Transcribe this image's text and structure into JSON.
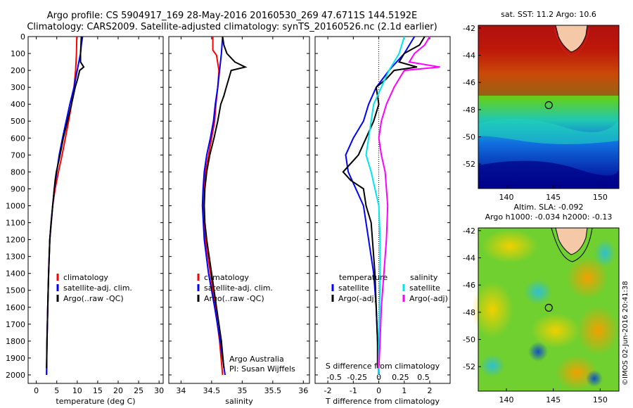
{
  "header": {
    "line1": "Argo profile: CS 5904917_169 28-May-2016 20160530_269 47.6711S 144.5192E",
    "line2": "Climatology: CARS2009. Satellite-adjusted climatology: synTS_20160526.nc (2.1d earlier)"
  },
  "watermark": "©IMOS 02-Jun-2016 20:41:38",
  "depth_ticks": [
    0,
    100,
    200,
    300,
    400,
    500,
    600,
    700,
    800,
    900,
    1000,
    1100,
    1200,
    1300,
    1400,
    1500,
    1600,
    1700,
    1800,
    1900,
    2000
  ],
  "colors": {
    "climatology": "#ff0000",
    "satellite": "#0000ff",
    "argo": "#000000",
    "sat_s": "#00e5ee",
    "argo_s": "#ff00ff"
  },
  "chart_data": [
    {
      "type": "line",
      "xlabel": "temperature (deg C)",
      "xlim": [
        -2,
        31
      ],
      "xticks": [
        0,
        5,
        10,
        15,
        20,
        25,
        30
      ],
      "ylim": [
        2050,
        0
      ],
      "legend": {
        "placement": "lower-center",
        "items": [
          "climatology",
          "satellite-adj. clim.",
          "Argo(..raw -QC)"
        ]
      },
      "series": [
        {
          "name": "climatology",
          "depth": [
            0,
            100,
            200,
            300,
            400,
            500,
            600,
            700,
            800,
            900,
            1000,
            1200,
            1400,
            1600,
            1800,
            2000
          ],
          "values": [
            9.9,
            9.8,
            9.6,
            9.2,
            8.6,
            7.9,
            7.1,
            6.3,
            5.4,
            4.6,
            4.0,
            3.3,
            3.0,
            2.8,
            2.6,
            2.5
          ]
        },
        {
          "name": "satellite-adj. clim.",
          "depth": [
            0,
            50,
            100,
            200,
            300,
            400,
            500,
            600,
            700,
            800,
            900,
            1000,
            1200,
            1400,
            1600,
            1800,
            2000
          ],
          "values": [
            11.3,
            11.0,
            10.8,
            10.0,
            9.2,
            8.2,
            7.3,
            6.4,
            5.6,
            5.0,
            4.4,
            4.0,
            3.3,
            3.0,
            2.8,
            2.6,
            2.5
          ]
        },
        {
          "name": "Argo(..raw -QC)",
          "depth": [
            0,
            50,
            100,
            150,
            180,
            200,
            250,
            300,
            400,
            500,
            600,
            700,
            800,
            850,
            900,
            1000,
            1100,
            1200,
            1400,
            1600,
            1800,
            1960
          ],
          "values": [
            11.0,
            10.9,
            10.8,
            10.8,
            11.6,
            10.6,
            10.1,
            9.5,
            8.6,
            7.6,
            6.6,
            5.8,
            4.9,
            4.6,
            4.4,
            4.0,
            3.6,
            3.3,
            3.0,
            2.8,
            2.6,
            2.5
          ]
        }
      ]
    },
    {
      "type": "line",
      "xlabel": "salinity",
      "xlim": [
        33.8,
        36.1
      ],
      "xticks": [
        34,
        34.5,
        35,
        35.5,
        36
      ],
      "ylim": [
        2050,
        0
      ],
      "legend": {
        "placement": "lower-center",
        "items": [
          "climatology",
          "satellite-adj. clim.",
          "Argo(..raw -QC)"
        ]
      },
      "annotation": [
        "Argo Australia",
        "PI: Susan Wijffels"
      ],
      "series": [
        {
          "name": "climatology",
          "depth": [
            0,
            80,
            110,
            200,
            300,
            400,
            500,
            600,
            700,
            800,
            900,
            1000,
            1200,
            1400,
            1600,
            1800,
            2000
          ],
          "values": [
            34.52,
            34.52,
            34.58,
            34.62,
            34.6,
            34.57,
            34.55,
            34.5,
            34.45,
            34.4,
            34.38,
            34.37,
            34.4,
            34.48,
            34.56,
            34.63,
            34.68
          ]
        },
        {
          "name": "satellite-adj. clim.",
          "depth": [
            0,
            100,
            200,
            300,
            400,
            500,
            600,
            700,
            800,
            900,
            1000,
            1200,
            1400,
            1600,
            1800,
            2000
          ],
          "values": [
            34.68,
            34.66,
            34.63,
            34.6,
            34.56,
            34.53,
            34.48,
            34.42,
            34.38,
            34.36,
            34.35,
            34.38,
            34.45,
            34.55,
            34.64,
            34.72
          ]
        },
        {
          "name": "Argo(..raw -QC)",
          "depth": [
            0,
            50,
            100,
            150,
            180,
            200,
            250,
            300,
            350,
            400,
            500,
            600,
            700,
            800,
            900,
            1000,
            1100,
            1200,
            1400,
            1600,
            1800,
            1960
          ],
          "values": [
            34.68,
            34.7,
            34.75,
            34.88,
            35.05,
            34.82,
            34.78,
            34.74,
            34.7,
            34.65,
            34.6,
            34.54,
            34.47,
            34.42,
            34.39,
            34.38,
            34.39,
            34.42,
            34.5,
            34.58,
            34.66,
            34.7
          ]
        }
      ]
    },
    {
      "type": "line",
      "xlabel": "T difference from climatology",
      "xlabel_top": "S difference from climatology",
      "xlim": [
        -2.5,
        2.8
      ],
      "xticks": [
        -2,
        -1,
        0,
        1,
        2
      ],
      "xticks_top": [
        "-0.5",
        "-0.25",
        "0",
        "0.25",
        "0.5"
      ],
      "ylim": [
        2050,
        0
      ],
      "legend": {
        "placement": "lower-center",
        "temperature_title": "temperature",
        "salinity_title": "salinity",
        "items": [
          "satellite",
          "Argo(-adj)",
          "satellite",
          "Argo(-adj)"
        ]
      },
      "series": [
        {
          "name": "temperature satellite",
          "depth": [
            0,
            100,
            200,
            300,
            400,
            500,
            600,
            700,
            800,
            900,
            1000,
            1200,
            1400,
            1600,
            1800,
            2000
          ],
          "values": [
            1.4,
            1.0,
            0.4,
            -0.1,
            -0.4,
            -0.6,
            -1.0,
            -1.3,
            -1.2,
            -0.9,
            -0.6,
            -0.4,
            -0.2,
            -0.1,
            -0.05,
            0.0
          ]
        },
        {
          "name": "temperature Argo(-adj)",
          "depth": [
            0,
            50,
            100,
            150,
            180,
            200,
            250,
            300,
            400,
            500,
            600,
            700,
            800,
            850,
            900,
            1000,
            1100,
            1200,
            1400,
            1600,
            1800,
            1960
          ],
          "values": [
            1.8,
            1.6,
            1.0,
            0.8,
            1.5,
            0.6,
            0.3,
            -0.1,
            0.0,
            -0.2,
            -0.5,
            -0.8,
            -1.4,
            -1.1,
            -0.6,
            -0.5,
            -0.3,
            -0.25,
            -0.15,
            -0.1,
            -0.05,
            -0.05
          ]
        },
        {
          "name": "salinity satellite",
          "depth": [
            0,
            100,
            200,
            300,
            400,
            500,
            600,
            700,
            800,
            900,
            1000,
            1200,
            1400,
            1600,
            1800,
            2000
          ],
          "values": [
            1.0,
            0.8,
            0.4,
            0.1,
            -0.2,
            -0.3,
            -0.4,
            -0.5,
            -0.3,
            -0.15,
            0.0,
            0.05,
            0.05,
            0.03,
            0.0,
            -0.02
          ]
        },
        {
          "name": "salinity Argo(-adj)",
          "depth": [
            0,
            50,
            100,
            150,
            180,
            200,
            250,
            300,
            400,
            500,
            600,
            700,
            800,
            900,
            1000,
            1200,
            1400,
            1600,
            1800,
            1960
          ],
          "values": [
            2.0,
            1.8,
            1.4,
            1.2,
            2.4,
            1.0,
            0.8,
            0.6,
            0.3,
            0.1,
            0.0,
            0.1,
            0.25,
            0.3,
            0.35,
            0.3,
            0.2,
            0.1,
            0.05,
            0.0
          ]
        }
      ]
    },
    {
      "type": "heatmap",
      "title": "sat. SST: 11.2  Argo: 10.6",
      "xticks": [
        140,
        145,
        150
      ],
      "yticks": [
        -42,
        -44,
        -46,
        -48,
        -50,
        -52
      ],
      "xlim": [
        137,
        152
      ],
      "ylim": [
        -53.8,
        -41.8
      ],
      "marker": {
        "lon": 144.52,
        "lat": -47.67
      }
    },
    {
      "type": "heatmap",
      "title_lines": [
        "Altim. SLA: -0.092",
        "Argo h1000: -0.034 h2000: -0.13"
      ],
      "xticks": [
        140,
        145,
        150
      ],
      "yticks": [
        -42,
        -44,
        -46,
        -48,
        -50,
        -52
      ],
      "xlim": [
        137,
        152
      ],
      "ylim": [
        -53.8,
        -41.8
      ],
      "marker": {
        "lon": 144.52,
        "lat": -47.67
      }
    }
  ]
}
